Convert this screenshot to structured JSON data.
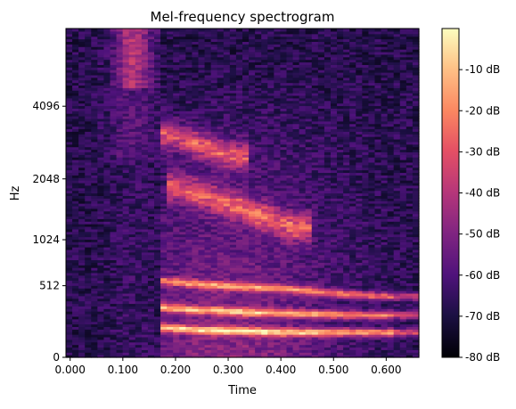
{
  "chart_data": {
    "type": "heatmap",
    "title": "Mel-frequency spectrogram",
    "xlabel": "Time",
    "ylabel": "Hz",
    "x_range": [
      -0.008,
      0.662
    ],
    "x_ticks": [
      0.0,
      0.1,
      0.2,
      0.3,
      0.4,
      0.5,
      0.6
    ],
    "x_tick_labels": [
      "0.000",
      "0.100",
      "0.200",
      "0.300",
      "0.400",
      "0.500",
      "0.600"
    ],
    "y_scale": "mel",
    "y_range_hz": [
      0,
      8000
    ],
    "y_ticks": [
      0,
      512,
      1024,
      2048,
      4096
    ],
    "y_tick_labels": [
      "0",
      "512",
      "1024",
      "2048",
      "4096"
    ],
    "colorbar": {
      "colormap": "magma",
      "range_db": [
        -80,
        0
      ],
      "ticks": [
        -10,
        -20,
        -30,
        -40,
        -50,
        -60,
        -70,
        -80
      ],
      "tick_labels": [
        "-10 dB",
        "-20 dB",
        "-30 dB",
        "-40 dB",
        "-50 dB",
        "-60 dB",
        "-70 dB",
        "-80 dB"
      ]
    },
    "speech_onset_s": 0.17,
    "harmonic_tracks_hz": {
      "times_s": [
        0.18,
        0.2,
        0.25,
        0.3,
        0.35,
        0.4,
        0.45,
        0.5,
        0.55,
        0.6
      ],
      "fundamental": [
        180,
        175,
        165,
        160,
        155,
        150,
        150,
        150,
        150,
        150
      ],
      "h1": [
        330,
        320,
        310,
        300,
        290,
        285,
        280,
        275,
        270,
        270
      ],
      "h2": [
        560,
        550,
        530,
        510,
        500,
        490,
        470,
        450,
        430,
        420
      ]
    },
    "formant_bands_hz": [
      {
        "hz_start": 1900,
        "hz_end": 1200,
        "t_start": 0.2,
        "t_end": 0.42,
        "db": -20
      },
      {
        "hz_start": 3200,
        "hz_end": 2600,
        "t_start": 0.18,
        "t_end": 0.3,
        "db": -25
      }
    ]
  }
}
